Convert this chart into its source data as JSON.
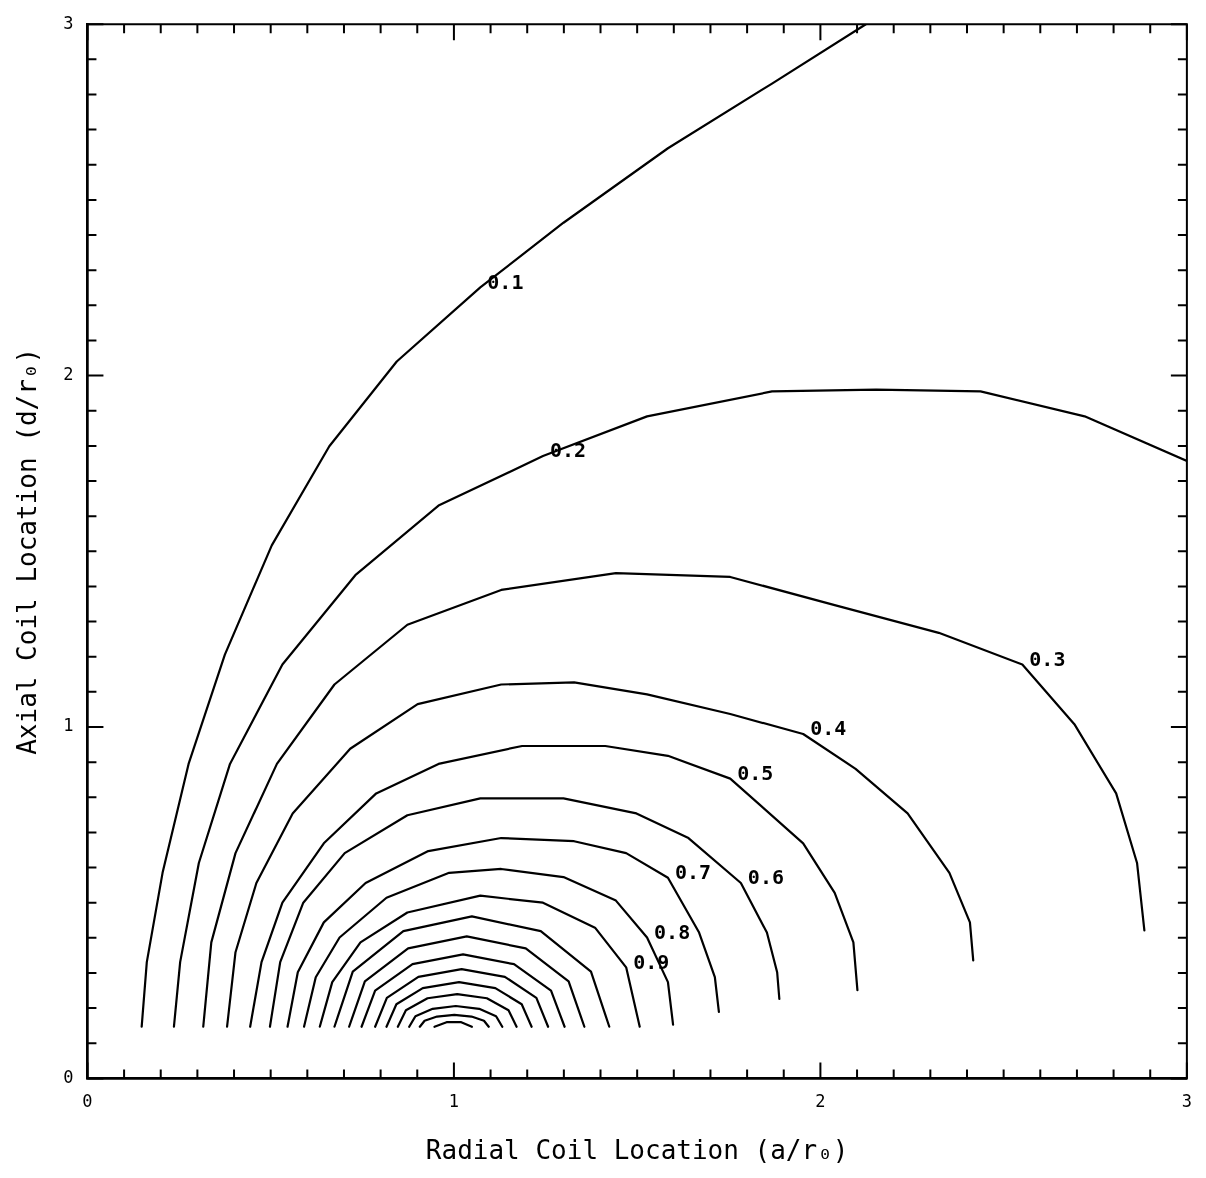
{
  "chart_data": {
    "type": "line",
    "xlabel": "Radial Coil Location (a/r₀)",
    "ylabel": "Axial Coil Location (d/r₀)",
    "marker": "none",
    "line_style": "solid",
    "xlim": [
      0,
      3
    ],
    "ylim": [
      0,
      3
    ],
    "xticks": [
      0,
      {
        "value": 0.1,
        "label": null
      },
      {
        "value": 0.2,
        "label": null
      },
      {
        "value": 0.3,
        "label": null
      },
      {
        "value": 0.4,
        "label": null
      },
      {
        "value": 0.5,
        "label": null
      },
      {
        "value": 0.6,
        "label": null
      },
      {
        "value": 0.7,
        "label": null
      },
      {
        "value": 0.8,
        "label": null
      },
      {
        "value": 0.9,
        "label": null
      },
      1,
      {
        "value": 1.1,
        "label": null
      },
      {
        "value": 1.2,
        "label": null
      },
      {
        "value": 1.3,
        "label": null
      },
      {
        "value": 1.4,
        "label": null
      },
      {
        "value": 1.5,
        "label": null
      },
      {
        "value": 1.6,
        "label": null
      },
      {
        "value": 1.7,
        "label": null
      },
      {
        "value": 1.8,
        "label": null
      },
      {
        "value": 1.9,
        "label": null
      },
      2,
      {
        "value": 2.1,
        "label": null
      },
      {
        "value": 2.2,
        "label": null
      },
      {
        "value": 2.3,
        "label": null
      },
      {
        "value": 2.4,
        "label": null
      },
      {
        "value": 2.5,
        "label": null
      },
      {
        "value": 2.6,
        "label": null
      },
      {
        "value": 2.7,
        "label": null
      },
      {
        "value": 2.8,
        "label": null
      },
      {
        "value": 2.9,
        "label": null
      },
      3
    ],
    "yticks": [
      0,
      {
        "value": 0.1,
        "label": null
      },
      {
        "value": 0.2,
        "label": null
      },
      {
        "value": 0.3,
        "label": null
      },
      {
        "value": 0.4,
        "label": null
      },
      {
        "value": 0.5,
        "label": null
      },
      {
        "value": 0.6,
        "label": null
      },
      {
        "value": 0.7,
        "label": null
      },
      {
        "value": 0.8,
        "label": null
      },
      {
        "value": 0.9,
        "label": null
      },
      1,
      {
        "value": 1.1,
        "label": null
      },
      {
        "value": 1.2,
        "label": null
      },
      {
        "value": 1.3,
        "label": null
      },
      {
        "value": 1.4,
        "label": null
      },
      {
        "value": 1.5,
        "label": null
      },
      {
        "value": 1.6,
        "label": null
      },
      {
        "value": 1.7,
        "label": null
      },
      {
        "value": 1.8,
        "label": null
      },
      {
        "value": 1.9,
        "label": null
      },
      2,
      {
        "value": 2.1,
        "label": null
      },
      {
        "value": 2.2,
        "label": null
      },
      {
        "value": 2.3,
        "label": null
      },
      {
        "value": 2.4,
        "label": null
      },
      {
        "value": 2.5,
        "label": null
      },
      {
        "value": 2.6,
        "label": null
      },
      {
        "value": 2.7,
        "label": null
      },
      {
        "value": 2.8,
        "label": null
      },
      {
        "value": 2.9,
        "label": null
      },
      3
    ],
    "series": [
      {
        "color": "#000000",
        "x": [
          0.148,
          0.162,
          0.205,
          0.276,
          0.375,
          0.503,
          0.66,
          0.844,
          1.072,
          1.299,
          1.584,
          1.868,
          2.124
        ],
        "values": [
          0.147,
          0.331,
          0.585,
          0.895,
          1.206,
          1.517,
          1.799,
          2.04,
          2.251,
          2.435,
          2.647,
          2.831,
          3.0
        ]
      },
      {
        "color": "#000000",
        "x": [
          0.236,
          0.253,
          0.304,
          0.389,
          0.532,
          0.731,
          0.958,
          1.243,
          1.527,
          1.868,
          2.152,
          2.437,
          2.721,
          3.0
        ],
        "values": [
          0.147,
          0.331,
          0.613,
          0.895,
          1.178,
          1.432,
          1.63,
          1.771,
          1.884,
          1.955,
          1.96,
          1.955,
          1.884,
          1.757
        ]
      },
      {
        "color": "#000000",
        "x": [
          0.316,
          0.338,
          0.404,
          0.517,
          0.674,
          0.873,
          1.129,
          1.442,
          1.754,
          2.039,
          2.323,
          2.551,
          2.693,
          2.807,
          2.864,
          2.884
        ],
        "values": [
          0.147,
          0.387,
          0.641,
          0.895,
          1.121,
          1.291,
          1.39,
          1.438,
          1.427,
          1.347,
          1.268,
          1.178,
          1.008,
          0.811,
          0.613,
          0.421
        ]
      },
      {
        "color": "#000000",
        "x": [
          0.381,
          0.404,
          0.461,
          0.56,
          0.717,
          0.901,
          1.129,
          1.328,
          1.527,
          1.754,
          1.953,
          2.096,
          2.238,
          2.352,
          2.408,
          2.417
        ],
        "values": [
          0.147,
          0.359,
          0.556,
          0.754,
          0.938,
          1.065,
          1.121,
          1.127,
          1.093,
          1.037,
          0.98,
          0.881,
          0.754,
          0.585,
          0.444,
          0.336
        ]
      },
      {
        "color": "#000000",
        "x": [
          0.444,
          0.475,
          0.532,
          0.645,
          0.788,
          0.958,
          1.186,
          1.413,
          1.584,
          1.754,
          1.953,
          2.039,
          2.09,
          2.101
        ],
        "values": [
          0.147,
          0.331,
          0.5,
          0.669,
          0.811,
          0.895,
          0.946,
          0.946,
          0.918,
          0.853,
          0.669,
          0.528,
          0.387,
          0.251
        ]
      },
      {
        "color": "#000000",
        "x": [
          0.498,
          0.526,
          0.589,
          0.702,
          0.873,
          1.072,
          1.299,
          1.498,
          1.64,
          1.783,
          1.854,
          1.882,
          1.888
        ],
        "values": [
          0.147,
          0.331,
          0.5,
          0.641,
          0.749,
          0.797,
          0.797,
          0.754,
          0.684,
          0.556,
          0.415,
          0.302,
          0.226
        ]
      },
      {
        "color": "#000000",
        "x": [
          0.546,
          0.574,
          0.645,
          0.759,
          0.93,
          1.129,
          1.328,
          1.47,
          1.584,
          1.669,
          1.712,
          1.723
        ],
        "values": [
          0.147,
          0.302,
          0.444,
          0.556,
          0.647,
          0.684,
          0.675,
          0.641,
          0.571,
          0.415,
          0.288,
          0.189
        ]
      },
      {
        "color": "#000000",
        "x": [
          0.591,
          0.623,
          0.688,
          0.816,
          0.987,
          1.129,
          1.299,
          1.442,
          1.527,
          1.584,
          1.598
        ],
        "values": [
          0.147,
          0.288,
          0.401,
          0.514,
          0.585,
          0.596,
          0.573,
          0.506,
          0.401,
          0.274,
          0.153
        ]
      },
      {
        "color": "#000000",
        "x": [
          0.634,
          0.668,
          0.745,
          0.873,
          1.072,
          1.243,
          1.385,
          1.47,
          1.507
        ],
        "values": [
          0.147,
          0.274,
          0.387,
          0.472,
          0.52,
          0.5,
          0.429,
          0.316,
          0.147
        ]
      },
      {
        "color": "#000000",
        "x": [
          0.674,
          0.724,
          0.862,
          1.049,
          1.237,
          1.374,
          1.424
        ],
        "values": [
          0.147,
          0.304,
          0.419,
          0.461,
          0.419,
          0.304,
          0.147
        ]
      },
      {
        "color": "#000000",
        "x": [
          0.714,
          0.757,
          0.875,
          1.035,
          1.196,
          1.313,
          1.356
        ],
        "values": [
          0.147,
          0.276,
          0.37,
          0.404,
          0.37,
          0.276,
          0.147
        ]
      },
      {
        "color": "#000000",
        "x": [
          0.748,
          0.785,
          0.887,
          1.025,
          1.164,
          1.265,
          1.302
        ],
        "values": [
          0.147,
          0.25,
          0.325,
          0.353,
          0.325,
          0.25,
          0.147
        ]
      },
      {
        "color": "#000000",
        "x": [
          0.785,
          0.817,
          0.903,
          1.021,
          1.139,
          1.225,
          1.257
        ],
        "values": [
          0.147,
          0.229,
          0.289,
          0.311,
          0.289,
          0.229,
          0.147
        ]
      },
      {
        "color": "#000000",
        "x": [
          0.816,
          0.843,
          0.915,
          1.014,
          1.113,
          1.185,
          1.212
        ],
        "values": [
          0.147,
          0.211,
          0.257,
          0.274,
          0.257,
          0.211,
          0.147
        ]
      },
      {
        "color": "#000000",
        "x": [
          0.847,
          0.869,
          0.928,
          1.009,
          1.09,
          1.149,
          1.171
        ],
        "values": [
          0.147,
          0.194,
          0.228,
          0.24,
          0.228,
          0.194,
          0.147
        ]
      },
      {
        "color": "#000000",
        "x": [
          0.878,
          0.895,
          0.942,
          1.005,
          1.069,
          1.115,
          1.132
        ],
        "values": [
          0.147,
          0.177,
          0.198,
          0.206,
          0.198,
          0.177,
          0.147
        ]
      },
      {
        "color": "#000000",
        "x": [
          0.907,
          0.92,
          0.954,
          1.001,
          1.048,
          1.082,
          1.095
        ],
        "values": [
          0.147,
          0.164,
          0.176,
          0.181,
          0.176,
          0.164,
          0.147
        ]
      },
      {
        "color": "#000000",
        "x": [
          0.947,
          0.98,
          1.02,
          1.049
        ],
        "values": [
          0.147,
          0.16,
          0.16,
          0.147
        ]
      }
    ],
    "annotations": [
      {
        "text": "0.1",
        "x": 1.072,
        "y": 2.251
      },
      {
        "text": "0.2",
        "x": 1.243,
        "y": 1.771
      },
      {
        "text": "0.3",
        "x": 2.551,
        "y": 1.178
      },
      {
        "text": "0.4",
        "x": 1.953,
        "y": 0.98
      },
      {
        "text": "0.5",
        "x": 1.754,
        "y": 0.853
      },
      {
        "text": "0.6",
        "x": 1.783,
        "y": 0.556
      },
      {
        "text": "0.7",
        "x": 1.584,
        "y": 0.571
      },
      {
        "text": "0.8",
        "x": 1.527,
        "y": 0.401
      },
      {
        "text": "0.9",
        "x": 1.47,
        "y": 0.316
      }
    ]
  }
}
